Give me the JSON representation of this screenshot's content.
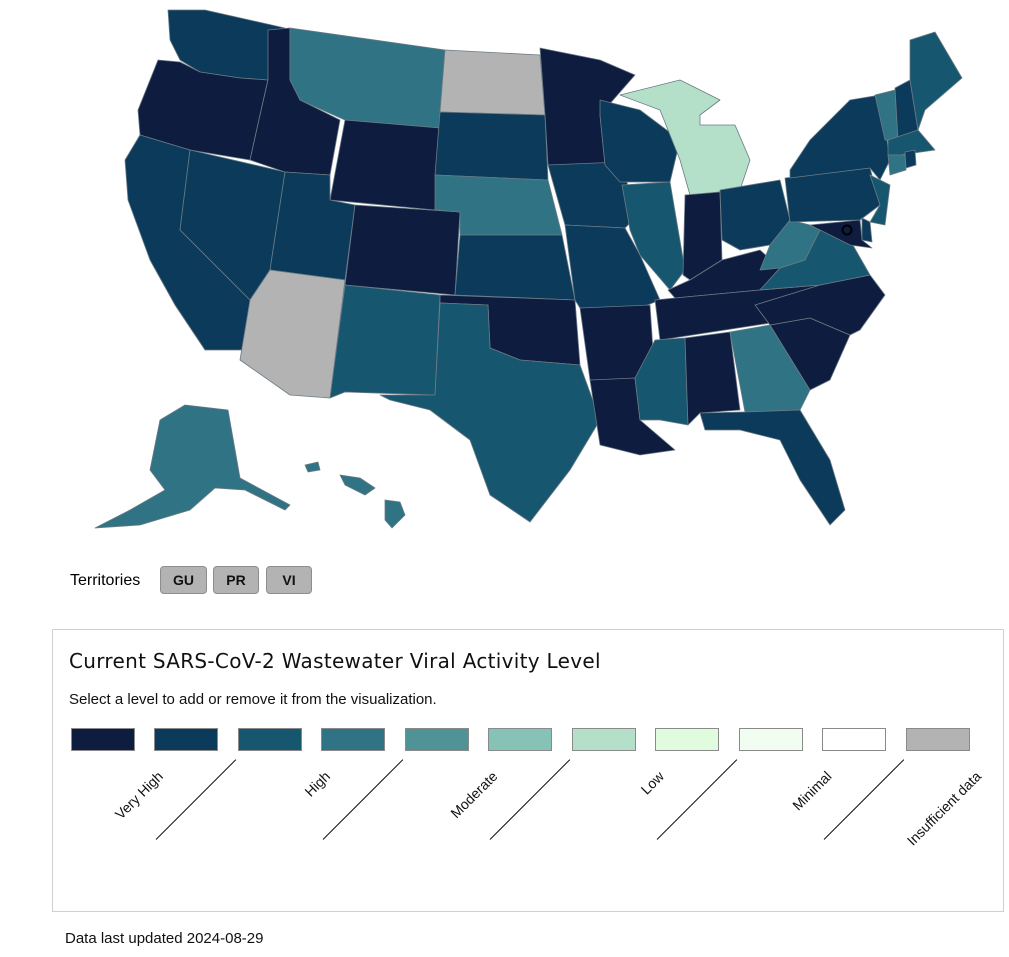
{
  "colors": {
    "very_high": "#0e1c3f",
    "high_very": "#0c3a5a",
    "high": "#17566f",
    "high_mod": "#2f7385",
    "moderate": "#4f9396",
    "mod_low": "#86c2b6",
    "low": "#b4dfc8",
    "low_min": "#e1fbdf",
    "minimal": "#f2fdf1",
    "none": "#ffffff",
    "insufficient": "#b3b3b3"
  },
  "map": {
    "states": [
      {
        "name": "WA",
        "level": "high_very"
      },
      {
        "name": "OR",
        "level": "very_high"
      },
      {
        "name": "CA",
        "level": "high_very"
      },
      {
        "name": "NV",
        "level": "high_very"
      },
      {
        "name": "ID",
        "level": "very_high"
      },
      {
        "name": "MT",
        "level": "high_mod"
      },
      {
        "name": "WY",
        "level": "very_high"
      },
      {
        "name": "UT",
        "level": "high_very"
      },
      {
        "name": "AZ",
        "level": "insufficient"
      },
      {
        "name": "CO",
        "level": "very_high"
      },
      {
        "name": "NM",
        "level": "high"
      },
      {
        "name": "ND",
        "level": "insufficient"
      },
      {
        "name": "SD",
        "level": "high_very"
      },
      {
        "name": "NE",
        "level": "high_mod"
      },
      {
        "name": "KS",
        "level": "high_very"
      },
      {
        "name": "OK",
        "level": "very_high"
      },
      {
        "name": "TX",
        "level": "high"
      },
      {
        "name": "MN",
        "level": "very_high"
      },
      {
        "name": "IA",
        "level": "high_very"
      },
      {
        "name": "MO",
        "level": "high_very"
      },
      {
        "name": "AR",
        "level": "very_high"
      },
      {
        "name": "LA",
        "level": "very_high"
      },
      {
        "name": "WI",
        "level": "high_very"
      },
      {
        "name": "IL",
        "level": "high"
      },
      {
        "name": "MI",
        "level": "low"
      },
      {
        "name": "IN",
        "level": "very_high"
      },
      {
        "name": "OH",
        "level": "high_very"
      },
      {
        "name": "KY",
        "level": "very_high"
      },
      {
        "name": "TN",
        "level": "very_high"
      },
      {
        "name": "MS",
        "level": "high"
      },
      {
        "name": "AL",
        "level": "very_high"
      },
      {
        "name": "GA",
        "level": "high_mod"
      },
      {
        "name": "FL",
        "level": "high_very"
      },
      {
        "name": "SC",
        "level": "very_high"
      },
      {
        "name": "NC",
        "level": "very_high"
      },
      {
        "name": "VA",
        "level": "high"
      },
      {
        "name": "WV",
        "level": "high_mod"
      },
      {
        "name": "PA",
        "level": "high_very"
      },
      {
        "name": "NY",
        "level": "high_very"
      },
      {
        "name": "NJ",
        "level": "high"
      },
      {
        "name": "DE",
        "level": "high_very"
      },
      {
        "name": "MD",
        "level": "very_high"
      },
      {
        "name": "VT",
        "level": "high_mod"
      },
      {
        "name": "NH",
        "level": "high_very"
      },
      {
        "name": "ME",
        "level": "high"
      },
      {
        "name": "MA",
        "level": "high"
      },
      {
        "name": "CT",
        "level": "high_mod"
      },
      {
        "name": "RI",
        "level": "high_very"
      },
      {
        "name": "DC",
        "level": "very_high"
      },
      {
        "name": "AK",
        "level": "high_mod"
      },
      {
        "name": "HI",
        "level": "high_mod"
      }
    ]
  },
  "territories": {
    "label": "Territories",
    "items": [
      "GU",
      "PR",
      "VI"
    ]
  },
  "legend": {
    "title": "Current SARS-CoV-2 Wastewater Viral Activity Level",
    "subtitle": "Select a level to add or remove it from the visualization.",
    "labels": [
      "Very High",
      "High",
      "Moderate",
      "Low",
      "Minimal",
      "Insufficient data"
    ],
    "swatches": [
      "very_high",
      "high_very",
      "high",
      "high_mod",
      "moderate",
      "mod_low",
      "low",
      "low_min",
      "minimal",
      "none",
      "insufficient"
    ]
  },
  "footer": {
    "updated": "Data last updated 2024-08-29"
  }
}
